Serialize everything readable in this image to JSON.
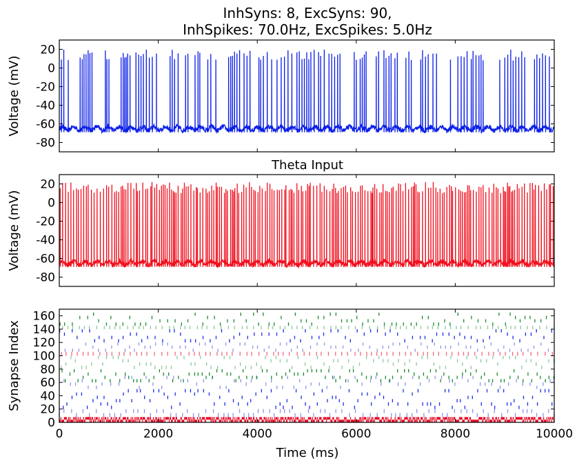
{
  "figure": {
    "title_line1": "InhSyns: 8, ExcSyns: 90,",
    "title_line2": "InhSpikes: 70.0Hz, ExcSpikes: 5.0Hz",
    "xlabel": "Time (ms)"
  },
  "colors": {
    "trace1": "#0a1ee6",
    "trace2": "#f0101e",
    "raster_red": "#e8102a",
    "raster_pink": "#f26a7a",
    "raster_blue": "#1a2ee8",
    "raster_lightblue": "#8a96ee",
    "raster_green": "#1a8a2e",
    "raster_lightgreen": "#8cc896"
  },
  "chart_data": [
    {
      "type": "line",
      "title": "",
      "xlabel": "",
      "ylabel": "Voltage (mV)",
      "xlim": [
        0,
        10000
      ],
      "ylim": [
        -90,
        30
      ],
      "yticks": [
        20,
        0,
        -20,
        -40,
        -60,
        -80
      ],
      "series": [
        {
          "color": "#0a1ee6",
          "baseline_mV": -65,
          "spike_peak_mV": 20,
          "spike_times_ms": [
            40,
            90,
            180,
            420,
            460,
            500,
            540,
            580,
            620,
            660,
            930,
            960,
            1000,
            1250,
            1290,
            1320,
            1350,
            1380,
            1430,
            1550,
            1600,
            1650,
            1700,
            1760,
            1820,
            1880,
            1960,
            2240,
            2280,
            2330,
            2400,
            2550,
            2600,
            2740,
            2800,
            2840,
            3000,
            3060,
            3160,
            3420,
            3460,
            3500,
            3540,
            3590,
            3640,
            3730,
            3790,
            3850,
            4030,
            4070,
            4120,
            4200,
            4290,
            4400,
            4480,
            4550,
            4620,
            4700,
            4800,
            4850,
            4900,
            4950,
            5000,
            5040,
            5080,
            5150,
            5240,
            5280,
            5350,
            5450,
            5500,
            5560,
            5620,
            5670,
            5960,
            6000,
            6080,
            6120,
            6160,
            6200,
            6400,
            6450,
            6560,
            6600,
            6660,
            6700,
            6780,
            6830,
            7000,
            7060,
            7110,
            7300,
            7340,
            7400,
            7450,
            7550,
            7620,
            7900,
            8050,
            8120,
            8180,
            8240,
            8320,
            8360,
            8420,
            8480,
            8520,
            8560,
            8900,
            9000,
            9060,
            9120,
            9170,
            9220,
            9280,
            9340,
            9400,
            9600,
            9650,
            9700,
            9760,
            9820,
            9900
          ]
        }
      ]
    },
    {
      "type": "line",
      "title": "Theta Input",
      "xlabel": "",
      "ylabel": "Voltage (mV)",
      "xlim": [
        0,
        10000
      ],
      "ylim": [
        -90,
        30
      ],
      "yticks": [
        20,
        0,
        -20,
        -40,
        -60,
        -80
      ],
      "series": [
        {
          "color": "#f0101e",
          "baseline_mV": -65,
          "spike_peak_mV": 22,
          "mean_interspike_ms": 45
        }
      ]
    },
    {
      "type": "scatter",
      "title": "",
      "xlabel": "Time (ms)",
      "ylabel": "Synapse Index",
      "xlim": [
        0,
        10000
      ],
      "ylim": [
        0,
        170
      ],
      "yticks": [
        0,
        20,
        40,
        60,
        80,
        100,
        120,
        140,
        160
      ],
      "xticks": [
        0,
        2000,
        4000,
        6000,
        8000,
        10000
      ],
      "groups": [
        {
          "index_range": [
            0,
            8
          ],
          "color": "#e8102a",
          "period_ms": 14
        },
        {
          "index_range": [
            8,
            20
          ],
          "color": "#8a96ee",
          "period_ms": 120
        },
        {
          "index_range": [
            20,
            50
          ],
          "color": "#1a2ee8",
          "period_ms": 90
        },
        {
          "index_range": [
            50,
            70
          ],
          "color": "#8a96ee",
          "period_ms": 140
        },
        {
          "index_range": [
            60,
            80
          ],
          "color": "#1a8a2e",
          "period_ms": 90
        },
        {
          "index_range": [
            80,
            100
          ],
          "color": "#8cc896",
          "period_ms": 110
        },
        {
          "index_range": [
            100,
            106
          ],
          "color": "#f26a7a",
          "period_ms": 125
        },
        {
          "index_range": [
            106,
            120
          ],
          "color": "#8a96ee",
          "period_ms": 125
        },
        {
          "index_range": [
            120,
            140
          ],
          "color": "#1a2ee8",
          "period_ms": 125
        },
        {
          "index_range": [
            140,
            145
          ],
          "color": "#8cc896",
          "period_ms": 125
        },
        {
          "index_range": [
            145,
            165
          ],
          "color": "#1a8a2e",
          "period_ms": 125
        }
      ]
    }
  ]
}
